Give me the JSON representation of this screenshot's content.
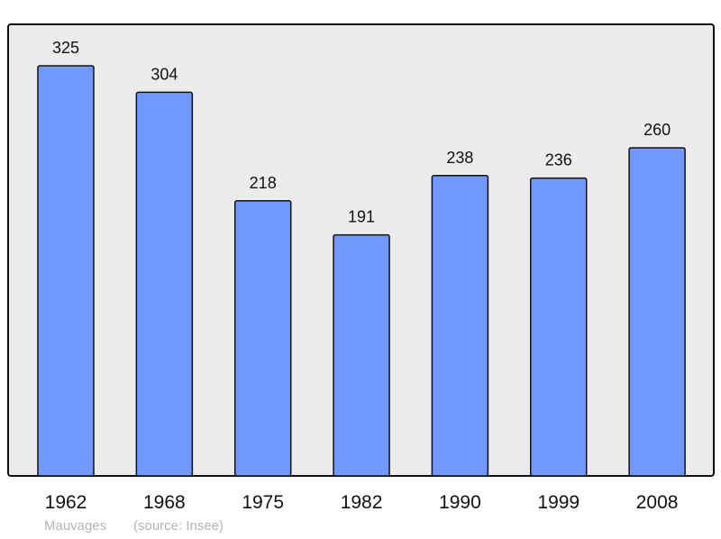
{
  "chart_data": {
    "type": "bar",
    "categories": [
      "1962",
      "1968",
      "1975",
      "1982",
      "1990",
      "1999",
      "2008"
    ],
    "values": [
      325,
      304,
      218,
      191,
      238,
      236,
      260
    ],
    "ylim": [
      0,
      358
    ],
    "grid": false,
    "colors": {
      "bar": "#7098ff",
      "background": "#ececec",
      "frame": "#111111"
    }
  },
  "footer": {
    "place": "Mauvages",
    "source": "(source: Insee)"
  }
}
